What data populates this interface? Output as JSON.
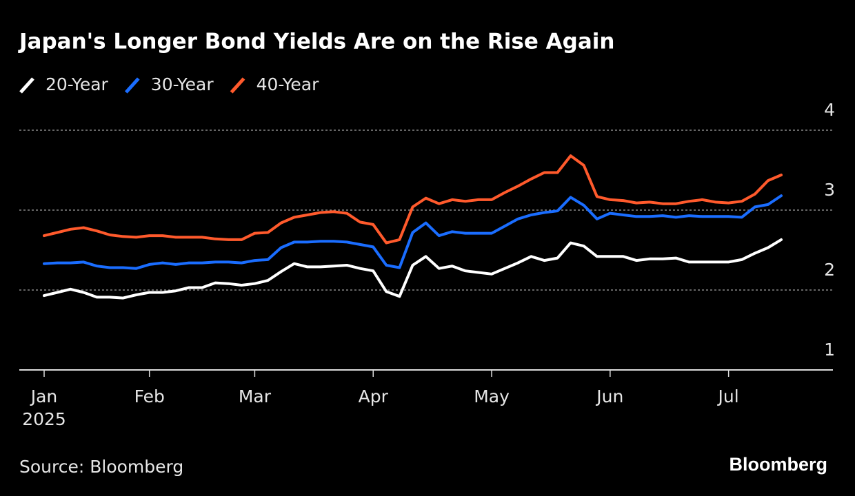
{
  "chart_data": {
    "type": "line",
    "title": "Japan's Longer Bond Yields Are on the Rise Again",
    "source": "Source: Bloomberg",
    "logo": "Bloomberg",
    "year": "2025",
    "categories": [
      "Jan",
      null,
      null,
      null,
      null,
      null,
      null,
      null,
      "Feb",
      null,
      null,
      null,
      null,
      null,
      null,
      null,
      "Mar",
      null,
      null,
      null,
      null,
      null,
      null,
      null,
      null,
      "Apr",
      null,
      null,
      null,
      null,
      null,
      null,
      null,
      null,
      "May",
      null,
      null,
      null,
      null,
      null,
      null,
      null,
      null,
      "Jun",
      null,
      null,
      null,
      null,
      null,
      null,
      null,
      null,
      "Jul",
      null,
      null,
      null,
      null
    ],
    "series": [
      {
        "name": "20-Year",
        "color": "#ffffff",
        "values": [
          1.93,
          1.97,
          2.01,
          1.97,
          1.91,
          1.91,
          1.9,
          1.94,
          1.97,
          1.97,
          1.99,
          2.03,
          2.03,
          2.09,
          2.08,
          2.06,
          2.08,
          2.12,
          2.23,
          2.33,
          2.29,
          2.29,
          2.3,
          2.31,
          2.27,
          2.24,
          1.98,
          1.92,
          2.31,
          2.42,
          2.27,
          2.3,
          2.24,
          2.22,
          2.2,
          2.27,
          2.34,
          2.42,
          2.37,
          2.4,
          2.59,
          2.55,
          2.42,
          2.42,
          2.42,
          2.37,
          2.39,
          2.39,
          2.4,
          2.35,
          2.35,
          2.35,
          2.35,
          2.38,
          2.46,
          2.53,
          2.63
        ]
      },
      {
        "name": "30-Year",
        "color": "#1a6dff",
        "values": [
          2.33,
          2.34,
          2.34,
          2.35,
          2.3,
          2.28,
          2.28,
          2.27,
          2.32,
          2.34,
          2.32,
          2.34,
          2.34,
          2.35,
          2.35,
          2.34,
          2.37,
          2.38,
          2.53,
          2.6,
          2.6,
          2.61,
          2.61,
          2.6,
          2.57,
          2.54,
          2.31,
          2.28,
          2.72,
          2.84,
          2.68,
          2.73,
          2.71,
          2.71,
          2.71,
          2.8,
          2.89,
          2.94,
          2.97,
          2.99,
          3.16,
          3.06,
          2.89,
          2.96,
          2.94,
          2.92,
          2.92,
          2.93,
          2.91,
          2.93,
          2.92,
          2.92,
          2.92,
          2.91,
          3.04,
          3.07,
          3.18
        ]
      },
      {
        "name": "40-Year",
        "color": "#ff5a2c",
        "values": [
          2.68,
          2.72,
          2.76,
          2.78,
          2.74,
          2.69,
          2.67,
          2.66,
          2.68,
          2.68,
          2.66,
          2.66,
          2.66,
          2.64,
          2.63,
          2.63,
          2.71,
          2.72,
          2.84,
          2.91,
          2.94,
          2.97,
          2.98,
          2.96,
          2.85,
          2.82,
          2.59,
          2.63,
          3.04,
          3.15,
          3.08,
          3.13,
          3.11,
          3.13,
          3.13,
          3.22,
          3.3,
          3.39,
          3.47,
          3.47,
          3.68,
          3.56,
          3.17,
          3.13,
          3.12,
          3.09,
          3.1,
          3.08,
          3.08,
          3.11,
          3.13,
          3.1,
          3.09,
          3.11,
          3.2,
          3.37,
          3.44
        ]
      }
    ],
    "ylim": [
      1,
      4
    ],
    "yticks": [
      1,
      2,
      3,
      4
    ],
    "grid": true
  }
}
